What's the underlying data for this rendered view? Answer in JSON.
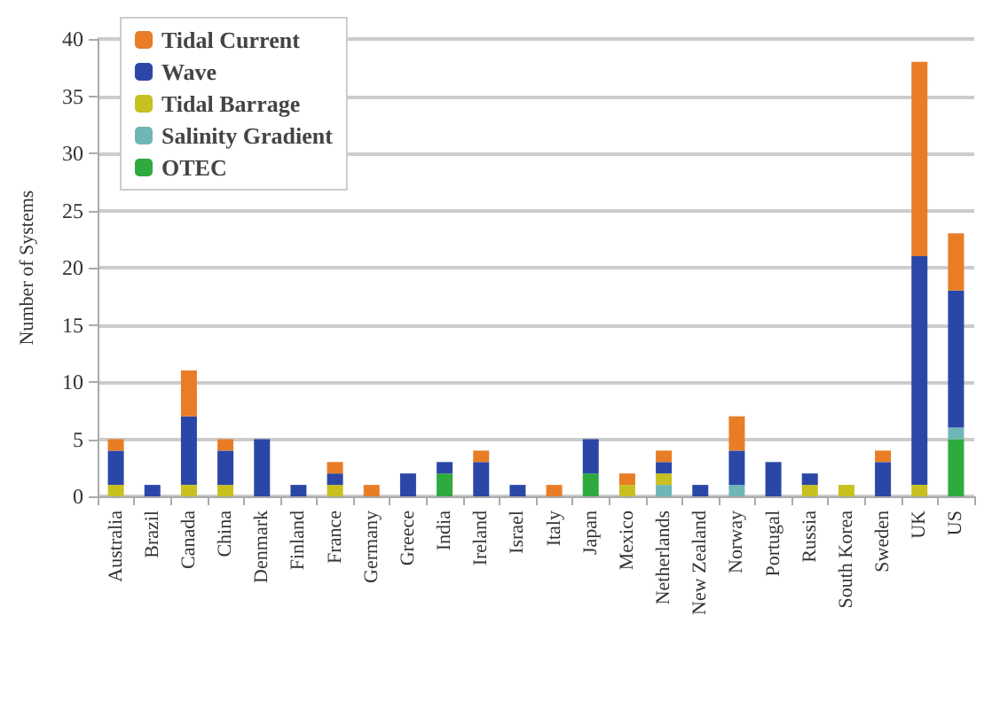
{
  "chart_data": {
    "type": "bar",
    "stacked": true,
    "ylabel": "Number of Systems",
    "categories": [
      "Australia",
      "Brazil",
      "Canada",
      "China",
      "Denmark",
      "Finland",
      "France",
      "Germany",
      "Greece",
      "India",
      "Ireland",
      "Israel",
      "Italy",
      "Japan",
      "Mexico",
      "Netherlands",
      "New Zealand",
      "Norway",
      "Portugal",
      "Russia",
      "South Korea",
      "Sweden",
      "UK",
      "US"
    ],
    "series": [
      {
        "name": "OTEC",
        "color": "#2eaa3e",
        "values": [
          0,
          0,
          0,
          0,
          0,
          0,
          0,
          0,
          0,
          2,
          0,
          0,
          0,
          2,
          0,
          0,
          0,
          0,
          0,
          0,
          0,
          0,
          0,
          5
        ]
      },
      {
        "name": "Salinity Gradient",
        "color": "#6fb6b6",
        "values": [
          0,
          0,
          0,
          0,
          0,
          0,
          0,
          0,
          0,
          0,
          0,
          0,
          0,
          0,
          0,
          1,
          0,
          1,
          0,
          0,
          0,
          0,
          0,
          1
        ]
      },
      {
        "name": "Tidal Barrage",
        "color": "#c8c020",
        "values": [
          1,
          0,
          1,
          1,
          0,
          0,
          1,
          0,
          0,
          0,
          0,
          0,
          0,
          0,
          1,
          1,
          0,
          0,
          0,
          1,
          1,
          0,
          1,
          0
        ]
      },
      {
        "name": "Wave",
        "color": "#2a47a8",
        "values": [
          3,
          1,
          6,
          3,
          5,
          1,
          1,
          0,
          2,
          1,
          3,
          1,
          0,
          3,
          0,
          1,
          1,
          3,
          3,
          1,
          0,
          3,
          20,
          12
        ]
      },
      {
        "name": "Tidal Current",
        "color": "#e87d26",
        "values": [
          1,
          0,
          4,
          1,
          0,
          0,
          1,
          1,
          0,
          0,
          1,
          0,
          1,
          0,
          1,
          1,
          0,
          3,
          0,
          0,
          0,
          1,
          17,
          5
        ]
      }
    ],
    "ylim": [
      0,
      40
    ],
    "yticks": [
      0,
      5,
      10,
      15,
      20,
      25,
      30,
      35,
      40
    ],
    "grid": "y",
    "legend": "top left"
  }
}
